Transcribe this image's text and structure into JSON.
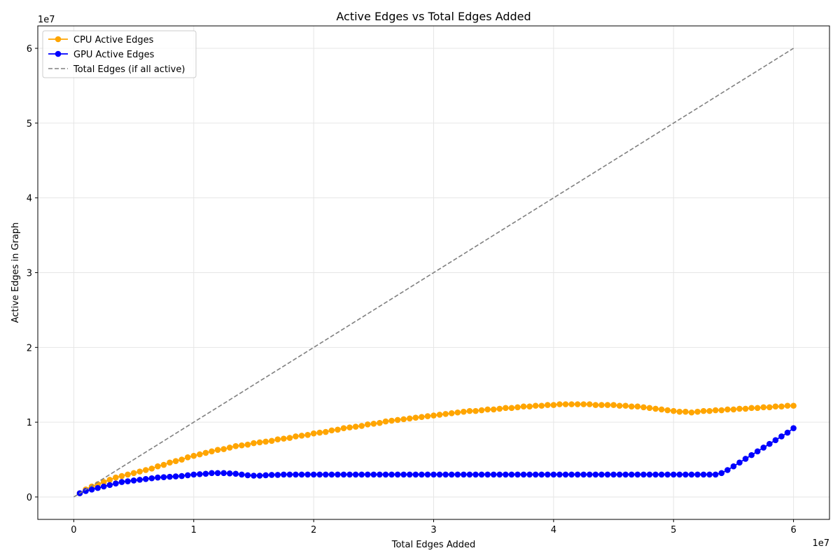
{
  "chart_data": {
    "type": "line",
    "title": "Active Edges vs Total Edges Added",
    "xlabel": "Total Edges Added",
    "ylabel": "Active Edges in Graph",
    "x_multiplier": "1e7",
    "y_multiplier": "1e7",
    "xlim": [
      -3000000,
      63000000
    ],
    "ylim": [
      -3000000,
      63000000
    ],
    "x_ticks": [
      0,
      10000000,
      20000000,
      30000000,
      40000000,
      50000000,
      60000000
    ],
    "x_tick_labels": [
      "0",
      "1",
      "2",
      "3",
      "4",
      "5",
      "6"
    ],
    "y_ticks": [
      0,
      10000000,
      20000000,
      30000000,
      40000000,
      50000000,
      60000000
    ],
    "y_tick_labels": [
      "0",
      "1",
      "2",
      "3",
      "4",
      "5",
      "6"
    ],
    "grid": true,
    "legend_position": "upper-left",
    "x": [
      500000,
      1000000,
      1500000,
      2000000,
      2500000,
      3000000,
      3500000,
      4000000,
      4500000,
      5000000,
      5500000,
      6000000,
      6500000,
      7000000,
      7500000,
      8000000,
      8500000,
      9000000,
      9500000,
      10000000,
      10500000,
      11000000,
      11500000,
      12000000,
      12500000,
      13000000,
      13500000,
      14000000,
      14500000,
      15000000,
      15500000,
      16000000,
      16500000,
      17000000,
      17500000,
      18000000,
      18500000,
      19000000,
      19500000,
      20000000,
      20500000,
      21000000,
      21500000,
      22000000,
      22500000,
      23000000,
      23500000,
      24000000,
      24500000,
      25000000,
      25500000,
      26000000,
      26500000,
      27000000,
      27500000,
      28000000,
      28500000,
      29000000,
      29500000,
      30000000,
      30500000,
      31000000,
      31500000,
      32000000,
      32500000,
      33000000,
      33500000,
      34000000,
      34500000,
      35000000,
      35500000,
      36000000,
      36500000,
      37000000,
      37500000,
      38000000,
      38500000,
      39000000,
      39500000,
      40000000,
      40500000,
      41000000,
      41500000,
      42000000,
      42500000,
      43000000,
      43500000,
      44000000,
      44500000,
      45000000,
      45500000,
      46000000,
      46500000,
      47000000,
      47500000,
      48000000,
      48500000,
      49000000,
      49500000,
      50000000,
      50500000,
      51000000,
      51500000,
      52000000,
      52500000,
      53000000,
      53500000,
      54000000,
      54500000,
      55000000,
      55500000,
      56000000,
      56500000,
      57000000,
      57500000,
      58000000,
      58500000,
      59000000,
      59500000,
      60000000
    ],
    "series": [
      {
        "name": "CPU Active Edges",
        "color": "#ffa500",
        "style": "line-marker",
        "values": [
          500000,
          1000000,
          1400000,
          1700000,
          2000000,
          2300000,
          2600000,
          2800000,
          3000000,
          3200000,
          3400000,
          3600000,
          3800000,
          4100000,
          4300000,
          4600000,
          4800000,
          5000000,
          5300000,
          5500000,
          5700000,
          5900000,
          6100000,
          6300000,
          6400000,
          6600000,
          6800000,
          6900000,
          7000000,
          7200000,
          7300000,
          7400000,
          7500000,
          7700000,
          7800000,
          7900000,
          8100000,
          8200000,
          8300000,
          8500000,
          8600000,
          8700000,
          8900000,
          9000000,
          9200000,
          9300000,
          9400000,
          9500000,
          9700000,
          9800000,
          9900000,
          10100000,
          10200000,
          10300000,
          10400000,
          10500000,
          10600000,
          10700000,
          10800000,
          10900000,
          11000000,
          11100000,
          11200000,
          11300000,
          11400000,
          11500000,
          11500000,
          11600000,
          11700000,
          11700000,
          11800000,
          11900000,
          11900000,
          12000000,
          12100000,
          12100000,
          12200000,
          12200000,
          12300000,
          12300000,
          12400000,
          12400000,
          12400000,
          12400000,
          12400000,
          12400000,
          12300000,
          12300000,
          12300000,
          12300000,
          12200000,
          12200000,
          12100000,
          12100000,
          12000000,
          11900000,
          11800000,
          11700000,
          11600000,
          11500000,
          11400000,
          11400000,
          11300000,
          11400000,
          11500000,
          11500000,
          11600000,
          11600000,
          11700000,
          11700000,
          11800000,
          11800000,
          11900000,
          11900000,
          12000000,
          12000000,
          12100000,
          12100000,
          12200000,
          12200000
        ]
      },
      {
        "name": "GPU Active Edges",
        "color": "#0000ff",
        "style": "line-marker",
        "values": [
          500000,
          800000,
          1000000,
          1200000,
          1400000,
          1600000,
          1800000,
          2000000,
          2100000,
          2200000,
          2300000,
          2400000,
          2500000,
          2600000,
          2650000,
          2700000,
          2750000,
          2800000,
          2900000,
          3000000,
          3050000,
          3100000,
          3200000,
          3200000,
          3200000,
          3150000,
          3100000,
          3000000,
          2900000,
          2850000,
          2850000,
          2900000,
          2950000,
          2950000,
          3000000,
          3000000,
          3000000,
          3000000,
          3000000,
          3000000,
          3000000,
          3000000,
          3000000,
          3000000,
          3000000,
          3000000,
          3000000,
          3000000,
          3000000,
          3000000,
          3000000,
          3000000,
          3000000,
          3000000,
          3000000,
          3000000,
          3000000,
          3000000,
          3000000,
          3000000,
          3000000,
          3000000,
          3000000,
          3000000,
          3000000,
          3000000,
          3000000,
          3000000,
          3000000,
          3000000,
          3000000,
          3000000,
          3000000,
          3000000,
          3000000,
          3000000,
          3000000,
          3000000,
          3000000,
          3000000,
          3000000,
          3000000,
          3000000,
          3000000,
          3000000,
          3000000,
          3000000,
          3000000,
          3000000,
          3000000,
          3000000,
          3000000,
          3000000,
          3000000,
          3000000,
          3000000,
          3000000,
          3000000,
          3000000,
          3000000,
          3000000,
          3000000,
          3000000,
          3000000,
          3000000,
          3000000,
          3000000,
          3200000,
          3600000,
          4100000,
          4600000,
          5100000,
          5600000,
          6100000,
          6600000,
          7100000,
          7600000,
          8100000,
          8600000,
          9200000
        ]
      },
      {
        "name": "Total Edges (if all active)",
        "color": "#808080",
        "style": "dashed",
        "x": [
          0,
          60000000
        ],
        "values": [
          0,
          60000000
        ]
      }
    ]
  }
}
